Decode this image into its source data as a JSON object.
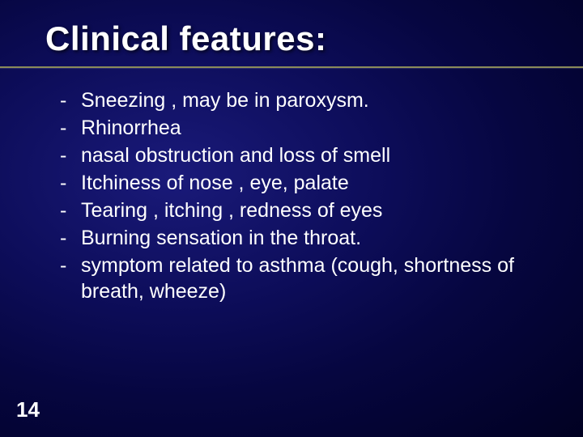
{
  "title": "Clinical features:",
  "title_fontsize": 42,
  "title_color": "#ffffff",
  "underline_color": "#8a8a5a",
  "background_gradient": {
    "type": "radial",
    "center": "30% 40%",
    "stops": [
      "#1a1a7a",
      "#0d0d5a",
      "#060640",
      "#010122"
    ]
  },
  "bullet_char": "-",
  "body_fontsize": 25,
  "body_color": "#ffffff",
  "items": [
    "Sneezing , may be in paroxysm.",
    "Rhinorrhea",
    " nasal obstruction and loss of smell",
    "Itchiness of nose , eye, palate",
    "Tearing , itching , redness of eyes",
    "Burning sensation in the throat.",
    " symptom related to asthma (cough, shortness of breath, wheeze)"
  ],
  "page_number": "14",
  "page_number_fontsize": 26
}
